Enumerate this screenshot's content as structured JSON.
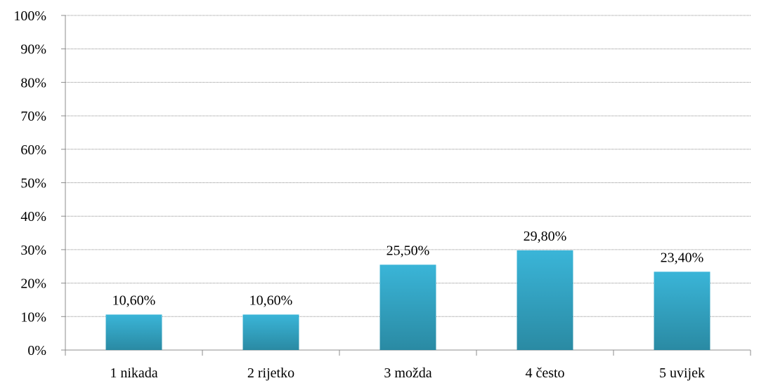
{
  "chart_data": {
    "type": "bar",
    "title": "",
    "xlabel": "",
    "ylabel": "",
    "categories": [
      "1 nikada",
      "2 rijetko",
      "3 možda",
      "4 često",
      "5 uvijek"
    ],
    "values": [
      10.6,
      10.6,
      25.5,
      29.8,
      23.4
    ],
    "data_labels": [
      "10,60%",
      "10,60%",
      "25,50%",
      "29,80%",
      "23,40%"
    ],
    "ylim": [
      0,
      100
    ],
    "y_ticks": [
      0,
      10,
      20,
      30,
      40,
      50,
      60,
      70,
      80,
      90,
      100
    ],
    "y_tick_labels": [
      "0%",
      "10%",
      "20%",
      "30%",
      "40%",
      "50%",
      "60%",
      "70%",
      "80%",
      "90%",
      "100%"
    ],
    "grid": true,
    "legend": "none",
    "bar_color_top": "#3ab5d8",
    "bar_color_bottom": "#2a8aa3"
  }
}
